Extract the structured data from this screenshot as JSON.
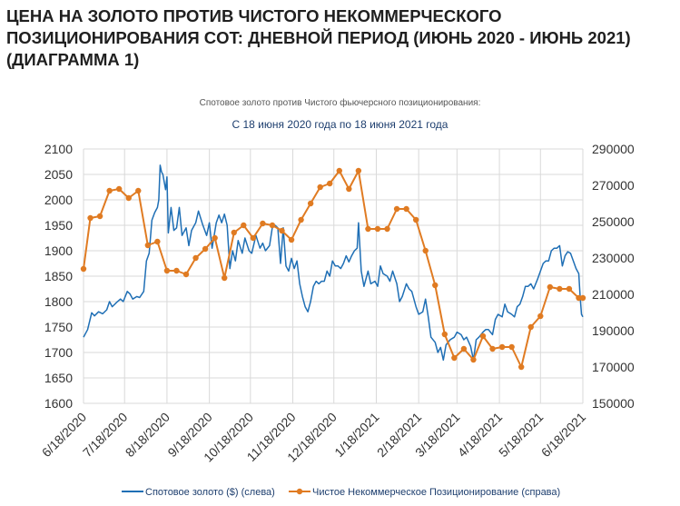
{
  "page": {
    "title": "ЦЕНА НА ЗОЛОТО ПРОТИВ ЧИСТОГО НЕКОММЕРЧЕСКОГО ПОЗИЦИОНИРОВАНИЯ COT: ДНЕВНОЙ ПЕРИОД (ИЮНЬ 2020 - ИЮНЬ 2021) (ДИАГРАММА 1)"
  },
  "chart_data": {
    "type": "line",
    "subtitle": "Спотовое золото против Чистого фьючерсного позиционирования:",
    "title": "С 18 июня 2020 года по 18 июня 2021 года",
    "x_ticks": [
      "6/18/2020",
      "7/18/2020",
      "8/18/2020",
      "9/18/2020",
      "10/18/2020",
      "11/18/2020",
      "12/18/2020",
      "1/18/2021",
      "2/18/2021",
      "3/18/2021",
      "4/18/2021",
      "5/18/2021",
      "6/18/2021"
    ],
    "y_left": {
      "range": [
        1600,
        2100
      ],
      "ticks": [
        "1600",
        "1650",
        "1700",
        "1750",
        "1800",
        "1850",
        "1900",
        "1950",
        "2000",
        "2050",
        "2100"
      ]
    },
    "y_right": {
      "range": [
        150000,
        290000
      ],
      "ticks": [
        "150000",
        "170000",
        "190000",
        "210000",
        "230000",
        "250000",
        "270000",
        "290000"
      ]
    },
    "grid": true,
    "legend_position": "bottom",
    "series": [
      {
        "name": "Спотовое золото ($) (слева)",
        "axis": "left",
        "color": "#1f6fb5",
        "marker": "none",
        "points": [
          [
            "2020-06-18",
            1730
          ],
          [
            "2020-06-21",
            1745
          ],
          [
            "2020-06-24",
            1778
          ],
          [
            "2020-06-26",
            1772
          ],
          [
            "2020-06-29",
            1780
          ],
          [
            "2020-07-02",
            1776
          ],
          [
            "2020-07-05",
            1784
          ],
          [
            "2020-07-07",
            1800
          ],
          [
            "2020-07-09",
            1790
          ],
          [
            "2020-07-12",
            1798
          ],
          [
            "2020-07-15",
            1805
          ],
          [
            "2020-07-17",
            1800
          ],
          [
            "2020-07-20",
            1820
          ],
          [
            "2020-07-22",
            1815
          ],
          [
            "2020-07-24",
            1805
          ],
          [
            "2020-07-27",
            1810
          ],
          [
            "2020-07-29",
            1808
          ],
          [
            "2020-08-01",
            1820
          ],
          [
            "2020-08-03",
            1880
          ],
          [
            "2020-08-05",
            1895
          ],
          [
            "2020-08-07",
            1960
          ],
          [
            "2020-08-09",
            1975
          ],
          [
            "2020-08-11",
            1985
          ],
          [
            "2020-08-12",
            2000
          ],
          [
            "2020-08-13",
            2068
          ],
          [
            "2020-08-14",
            2055
          ],
          [
            "2020-08-15",
            2050
          ],
          [
            "2020-08-17",
            2020
          ],
          [
            "2020-08-18",
            2045
          ],
          [
            "2020-08-19",
            1935
          ],
          [
            "2020-08-21",
            1985
          ],
          [
            "2020-08-23",
            1940
          ],
          [
            "2020-08-25",
            1945
          ],
          [
            "2020-08-27",
            1985
          ],
          [
            "2020-08-29",
            1930
          ],
          [
            "2020-09-01",
            1945
          ],
          [
            "2020-09-03",
            1910
          ],
          [
            "2020-09-05",
            1940
          ],
          [
            "2020-09-08",
            1955
          ],
          [
            "2020-09-10",
            1978
          ],
          [
            "2020-09-13",
            1952
          ],
          [
            "2020-09-16",
            1930
          ],
          [
            "2020-09-18",
            1955
          ],
          [
            "2020-09-20",
            1905
          ],
          [
            "2020-09-23",
            1955
          ],
          [
            "2020-09-25",
            1970
          ],
          [
            "2020-09-27",
            1955
          ],
          [
            "2020-09-29",
            1972
          ],
          [
            "2020-10-01",
            1950
          ],
          [
            "2020-10-03",
            1865
          ],
          [
            "2020-10-05",
            1900
          ],
          [
            "2020-10-07",
            1880
          ],
          [
            "2020-10-09",
            1920
          ],
          [
            "2020-10-12",
            1895
          ],
          [
            "2020-10-14",
            1925
          ],
          [
            "2020-10-17",
            1900
          ],
          [
            "2020-10-19",
            1895
          ],
          [
            "2020-10-22",
            1930
          ],
          [
            "2020-10-25",
            1905
          ],
          [
            "2020-10-27",
            1915
          ],
          [
            "2020-10-29",
            1900
          ],
          [
            "2020-11-01",
            1910
          ],
          [
            "2020-11-03",
            1945
          ],
          [
            "2020-11-05",
            1950
          ],
          [
            "2020-11-07",
            1945
          ],
          [
            "2020-11-09",
            1875
          ],
          [
            "2020-11-11",
            1945
          ],
          [
            "2020-11-13",
            1870
          ],
          [
            "2020-11-15",
            1860
          ],
          [
            "2020-11-17",
            1885
          ],
          [
            "2020-11-19",
            1865
          ],
          [
            "2020-11-21",
            1880
          ],
          [
            "2020-11-23",
            1835
          ],
          [
            "2020-11-25",
            1810
          ],
          [
            "2020-11-27",
            1790
          ],
          [
            "2020-11-29",
            1780
          ],
          [
            "2020-12-01",
            1800
          ],
          [
            "2020-12-03",
            1830
          ],
          [
            "2020-12-05",
            1840
          ],
          [
            "2020-12-07",
            1835
          ],
          [
            "2020-12-09",
            1840
          ],
          [
            "2020-12-11",
            1840
          ],
          [
            "2020-12-13",
            1860
          ],
          [
            "2020-12-15",
            1850
          ],
          [
            "2020-12-17",
            1880
          ],
          [
            "2020-12-19",
            1870
          ],
          [
            "2020-12-21",
            1870
          ],
          [
            "2020-12-23",
            1865
          ],
          [
            "2020-12-25",
            1875
          ],
          [
            "2020-12-27",
            1890
          ],
          [
            "2020-12-29",
            1878
          ],
          [
            "2020-12-31",
            1890
          ],
          [
            "2021-01-02",
            1900
          ],
          [
            "2021-01-04",
            1905
          ],
          [
            "2021-01-05",
            1955
          ],
          [
            "2021-01-07",
            1860
          ],
          [
            "2021-01-09",
            1830
          ],
          [
            "2021-01-12",
            1860
          ],
          [
            "2021-01-14",
            1835
          ],
          [
            "2021-01-17",
            1840
          ],
          [
            "2021-01-19",
            1830
          ],
          [
            "2021-01-21",
            1870
          ],
          [
            "2021-01-23",
            1855
          ],
          [
            "2021-01-26",
            1850
          ],
          [
            "2021-01-28",
            1840
          ],
          [
            "2021-01-30",
            1860
          ],
          [
            "2021-02-02",
            1835
          ],
          [
            "2021-02-04",
            1800
          ],
          [
            "2021-02-06",
            1810
          ],
          [
            "2021-02-09",
            1835
          ],
          [
            "2021-02-11",
            1825
          ],
          [
            "2021-02-13",
            1820
          ],
          [
            "2021-02-16",
            1790
          ],
          [
            "2021-02-18",
            1775
          ],
          [
            "2021-02-21",
            1780
          ],
          [
            "2021-02-23",
            1805
          ],
          [
            "2021-02-25",
            1770
          ],
          [
            "2021-02-27",
            1730
          ],
          [
            "2021-03-02",
            1720
          ],
          [
            "2021-03-04",
            1700
          ],
          [
            "2021-03-06",
            1710
          ],
          [
            "2021-03-08",
            1685
          ],
          [
            "2021-03-10",
            1715
          ],
          [
            "2021-03-13",
            1725
          ],
          [
            "2021-03-16",
            1730
          ],
          [
            "2021-03-18",
            1740
          ],
          [
            "2021-03-21",
            1735
          ],
          [
            "2021-03-23",
            1725
          ],
          [
            "2021-03-25",
            1730
          ],
          [
            "2021-03-28",
            1712
          ],
          [
            "2021-03-30",
            1685
          ],
          [
            "2021-04-01",
            1725
          ],
          [
            "2021-04-03",
            1730
          ],
          [
            "2021-04-06",
            1740
          ],
          [
            "2021-04-08",
            1745
          ],
          [
            "2021-04-10",
            1745
          ],
          [
            "2021-04-13",
            1735
          ],
          [
            "2021-04-15",
            1765
          ],
          [
            "2021-04-17",
            1775
          ],
          [
            "2021-04-20",
            1770
          ],
          [
            "2021-04-22",
            1795
          ],
          [
            "2021-04-24",
            1780
          ],
          [
            "2021-04-27",
            1775
          ],
          [
            "2021-04-29",
            1770
          ],
          [
            "2021-05-01",
            1790
          ],
          [
            "2021-05-03",
            1795
          ],
          [
            "2021-05-05",
            1810
          ],
          [
            "2021-05-07",
            1830
          ],
          [
            "2021-05-09",
            1830
          ],
          [
            "2021-05-11",
            1835
          ],
          [
            "2021-05-13",
            1825
          ],
          [
            "2021-05-16",
            1845
          ],
          [
            "2021-05-18",
            1860
          ],
          [
            "2021-05-20",
            1875
          ],
          [
            "2021-05-22",
            1880
          ],
          [
            "2021-05-24",
            1880
          ],
          [
            "2021-05-26",
            1900
          ],
          [
            "2021-05-28",
            1905
          ],
          [
            "2021-05-30",
            1905
          ],
          [
            "2021-06-01",
            1910
          ],
          [
            "2021-06-03",
            1870
          ],
          [
            "2021-06-05",
            1890
          ],
          [
            "2021-06-07",
            1898
          ],
          [
            "2021-06-09",
            1895
          ],
          [
            "2021-06-11",
            1880
          ],
          [
            "2021-06-13",
            1865
          ],
          [
            "2021-06-15",
            1855
          ],
          [
            "2021-06-16",
            1810
          ],
          [
            "2021-06-17",
            1775
          ],
          [
            "2021-06-18",
            1770
          ]
        ]
      },
      {
        "name": "Чистое Некоммерческое Позиционирование (справа)",
        "axis": "right",
        "color": "#e07b22",
        "marker": "circle",
        "points": [
          [
            "2020-06-18",
            224000
          ],
          [
            "2020-06-23",
            252000
          ],
          [
            "2020-06-30",
            253000
          ],
          [
            "2020-07-07",
            267000
          ],
          [
            "2020-07-14",
            268000
          ],
          [
            "2020-07-21",
            263000
          ],
          [
            "2020-07-28",
            267000
          ],
          [
            "2020-08-04",
            237000
          ],
          [
            "2020-08-11",
            239000
          ],
          [
            "2020-08-18",
            223000
          ],
          [
            "2020-08-25",
            223000
          ],
          [
            "2020-09-01",
            221000
          ],
          [
            "2020-09-08",
            230000
          ],
          [
            "2020-09-15",
            235000
          ],
          [
            "2020-09-22",
            241000
          ],
          [
            "2020-09-29",
            219000
          ],
          [
            "2020-10-06",
            244000
          ],
          [
            "2020-10-13",
            248000
          ],
          [
            "2020-10-20",
            241000
          ],
          [
            "2020-10-27",
            249000
          ],
          [
            "2020-11-03",
            248000
          ],
          [
            "2020-11-10",
            245000
          ],
          [
            "2020-11-17",
            240000
          ],
          [
            "2020-11-24",
            251000
          ],
          [
            "2020-12-01",
            260000
          ],
          [
            "2020-12-08",
            269000
          ],
          [
            "2020-12-15",
            271000
          ],
          [
            "2020-12-22",
            278000
          ],
          [
            "2020-12-29",
            268000
          ],
          [
            "2021-01-05",
            278000
          ],
          [
            "2021-01-12",
            246000
          ],
          [
            "2021-01-19",
            246000
          ],
          [
            "2021-01-26",
            246000
          ],
          [
            "2021-02-02",
            257000
          ],
          [
            "2021-02-09",
            257000
          ],
          [
            "2021-02-16",
            251000
          ],
          [
            "2021-02-23",
            234000
          ],
          [
            "2021-03-02",
            215000
          ],
          [
            "2021-03-09",
            188000
          ],
          [
            "2021-03-16",
            175000
          ],
          [
            "2021-03-23",
            180000
          ],
          [
            "2021-03-30",
            174000
          ],
          [
            "2021-04-06",
            187000
          ],
          [
            "2021-04-13",
            180000
          ],
          [
            "2021-04-20",
            181000
          ],
          [
            "2021-04-27",
            181000
          ],
          [
            "2021-05-04",
            170000
          ],
          [
            "2021-05-11",
            192000
          ],
          [
            "2021-05-18",
            198000
          ],
          [
            "2021-05-25",
            214000
          ],
          [
            "2021-06-01",
            213000
          ],
          [
            "2021-06-08",
            213000
          ],
          [
            "2021-06-15",
            208000
          ],
          [
            "2021-06-18",
            208000
          ]
        ]
      }
    ]
  }
}
